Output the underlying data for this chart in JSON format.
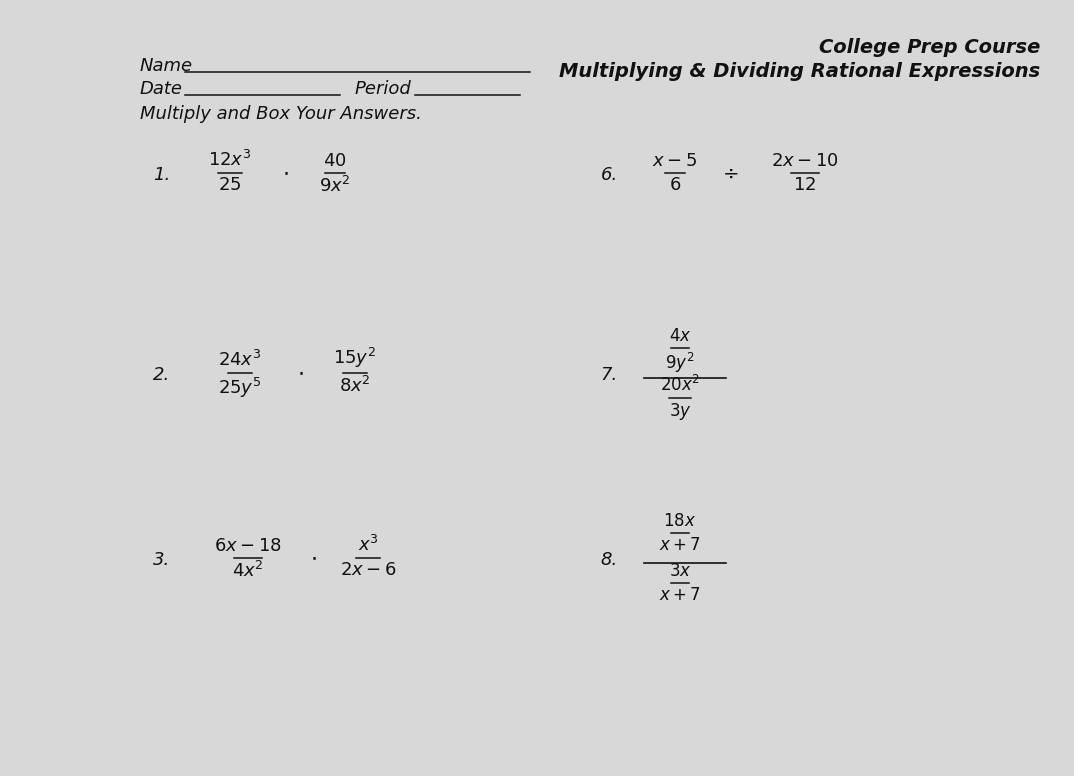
{
  "bg_color": "#d8d8d8",
  "text_color": "#111111",
  "title_course": "College Prep Course",
  "title_topic": "Multiplying & Dividing Rational Expressions",
  "header_name": "Name",
  "header_date": "Date",
  "header_period": "Period",
  "instruction": "Multiply and Box Your Answers.",
  "fig_width": 10.74,
  "fig_height": 7.76,
  "dpi": 100
}
